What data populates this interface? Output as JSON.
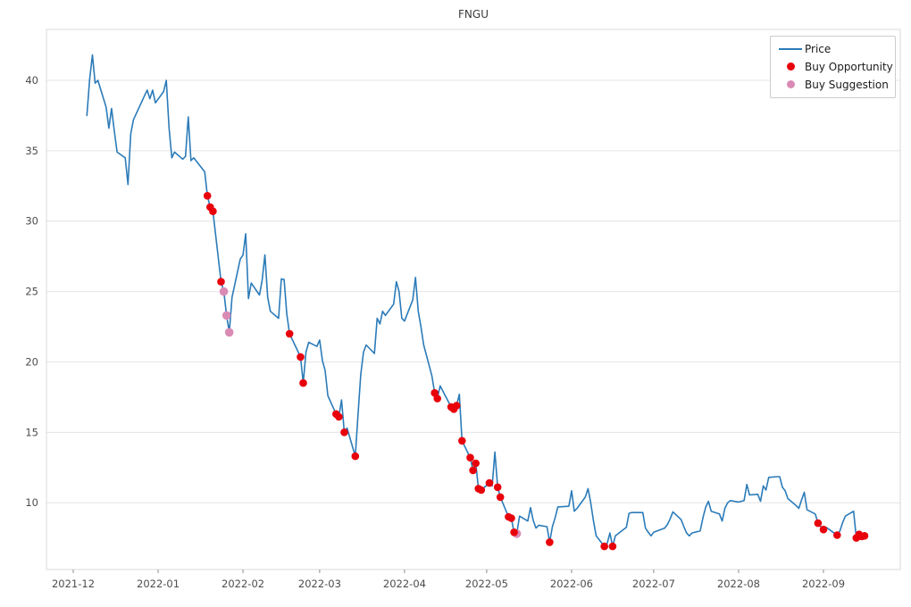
{
  "chart": {
    "title": "FNGU",
    "legend": [
      {
        "label": "Price",
        "marker": "line-sample-icon",
        "color": "#2b7bb9"
      },
      {
        "label": "Buy Opportunity",
        "marker": "red-dot-icon",
        "color": "#e8000b"
      },
      {
        "label": "Buy Suggestion",
        "marker": "pink-dot-icon",
        "color": "#da8bb5"
      }
    ]
  },
  "chart_data": {
    "type": "line",
    "title": "FNGU",
    "xlabel": "",
    "ylabel": "",
    "grid": "horizontal",
    "legend_position": "upper right",
    "x_tick_labels": [
      "2021-12",
      "2022-01",
      "2022-02",
      "2022-03",
      "2022-04",
      "2022-05",
      "2022-06",
      "2022-07",
      "2022-08",
      "2022-09"
    ],
    "x_tick_dates": [
      "2021-12-01",
      "2022-01-01",
      "2022-02-01",
      "2022-03-01",
      "2022-04-01",
      "2022-05-01",
      "2022-06-01",
      "2022-07-01",
      "2022-08-01",
      "2022-09-01"
    ],
    "y_ticks": [
      10,
      15,
      20,
      25,
      30,
      35,
      40
    ],
    "ylim": [
      5.3,
      43.6
    ],
    "xlim": [
      "2021-11-21",
      "2022-09-29"
    ],
    "colors": {
      "price": "#2b7bb9",
      "buy_opportunity": "#e8000b",
      "buy_suggestion": "#da8bb5",
      "grid": "#e4e4e4",
      "spine": "#d8d8d8",
      "tick_label": "#4d4d4d"
    },
    "series": [
      {
        "name": "Price",
        "points": [
          [
            "2021-12-06",
            37.5
          ],
          [
            "2021-12-07",
            40.1
          ],
          [
            "2021-12-08",
            41.8
          ],
          [
            "2021-12-09",
            39.8
          ],
          [
            "2021-12-10",
            40.0
          ],
          [
            "2021-12-13",
            38.1
          ],
          [
            "2021-12-14",
            36.6
          ],
          [
            "2021-12-15",
            38.0
          ],
          [
            "2021-12-16",
            36.4
          ],
          [
            "2021-12-17",
            34.9
          ],
          [
            "2021-12-20",
            34.5
          ],
          [
            "2021-12-21",
            32.6
          ],
          [
            "2021-12-22",
            36.2
          ],
          [
            "2021-12-23",
            37.2
          ],
          [
            "2021-12-27",
            38.9
          ],
          [
            "2021-12-28",
            39.3
          ],
          [
            "2021-12-29",
            38.7
          ],
          [
            "2021-12-30",
            39.3
          ],
          [
            "2021-12-31",
            38.4
          ],
          [
            "2022-01-03",
            39.2
          ],
          [
            "2022-01-04",
            40.0
          ],
          [
            "2022-01-05",
            36.6
          ],
          [
            "2022-01-06",
            34.5
          ],
          [
            "2022-01-07",
            34.9
          ],
          [
            "2022-01-10",
            34.4
          ],
          [
            "2022-01-11",
            34.6
          ],
          [
            "2022-01-12",
            37.4
          ],
          [
            "2022-01-13",
            34.3
          ],
          [
            "2022-01-14",
            34.5
          ],
          [
            "2022-01-18",
            33.5
          ],
          [
            "2022-01-19",
            31.8
          ],
          [
            "2022-01-20",
            31.0
          ],
          [
            "2022-01-21",
            30.7
          ],
          [
            "2022-01-24",
            25.7
          ],
          [
            "2022-01-25",
            25.0
          ],
          [
            "2022-01-26",
            23.3
          ],
          [
            "2022-01-27",
            22.1
          ],
          [
            "2022-01-28",
            24.6
          ],
          [
            "2022-01-31",
            27.3
          ],
          [
            "2022-02-01",
            27.6
          ],
          [
            "2022-02-02",
            29.1
          ],
          [
            "2022-02-03",
            24.5
          ],
          [
            "2022-02-04",
            25.6
          ],
          [
            "2022-02-07",
            24.75
          ],
          [
            "2022-02-08",
            25.8
          ],
          [
            "2022-02-09",
            27.6
          ],
          [
            "2022-02-10",
            24.6
          ],
          [
            "2022-02-11",
            23.6
          ],
          [
            "2022-02-14",
            23.1
          ],
          [
            "2022-02-15",
            25.9
          ],
          [
            "2022-02-16",
            25.85
          ],
          [
            "2022-02-17",
            23.4
          ],
          [
            "2022-02-18",
            22.0
          ],
          [
            "2022-02-22",
            20.35
          ],
          [
            "2022-02-23",
            18.5
          ],
          [
            "2022-02-24",
            20.7
          ],
          [
            "2022-02-25",
            21.4
          ],
          [
            "2022-02-28",
            21.1
          ],
          [
            "2022-03-01",
            21.55
          ],
          [
            "2022-03-02",
            20.1
          ],
          [
            "2022-03-03",
            19.4
          ],
          [
            "2022-03-04",
            17.6
          ],
          [
            "2022-03-07",
            16.3
          ],
          [
            "2022-03-08",
            16.1
          ],
          [
            "2022-03-09",
            17.3
          ],
          [
            "2022-03-10",
            15.0
          ],
          [
            "2022-03-11",
            15.3
          ],
          [
            "2022-03-14",
            13.3
          ],
          [
            "2022-03-15",
            16.2
          ],
          [
            "2022-03-16",
            19.1
          ],
          [
            "2022-03-17",
            20.7
          ],
          [
            "2022-03-18",
            21.2
          ],
          [
            "2022-03-21",
            20.6
          ],
          [
            "2022-03-22",
            23.1
          ],
          [
            "2022-03-23",
            22.7
          ],
          [
            "2022-03-24",
            23.6
          ],
          [
            "2022-03-25",
            23.3
          ],
          [
            "2022-03-28",
            24.1
          ],
          [
            "2022-03-29",
            25.7
          ],
          [
            "2022-03-30",
            25.0
          ],
          [
            "2022-03-31",
            23.1
          ],
          [
            "2022-04-01",
            22.9
          ],
          [
            "2022-04-04",
            24.4
          ],
          [
            "2022-04-05",
            26.0
          ],
          [
            "2022-04-06",
            23.6
          ],
          [
            "2022-04-07",
            22.5
          ],
          [
            "2022-04-08",
            21.2
          ],
          [
            "2022-04-11",
            19.0
          ],
          [
            "2022-04-12",
            17.8
          ],
          [
            "2022-04-13",
            17.4
          ],
          [
            "2022-04-14",
            18.3
          ],
          [
            "2022-04-18",
            16.8
          ],
          [
            "2022-04-19",
            16.65
          ],
          [
            "2022-04-20",
            16.9
          ],
          [
            "2022-04-21",
            17.7
          ],
          [
            "2022-04-22",
            14.4
          ],
          [
            "2022-04-25",
            13.2
          ],
          [
            "2022-04-26",
            12.3
          ],
          [
            "2022-04-27",
            12.8
          ],
          [
            "2022-04-28",
            11.0
          ],
          [
            "2022-04-29",
            10.9
          ],
          [
            "2022-05-02",
            11.4
          ],
          [
            "2022-05-03",
            11.2
          ],
          [
            "2022-05-04",
            13.6
          ],
          [
            "2022-05-05",
            11.1
          ],
          [
            "2022-05-06",
            10.4
          ],
          [
            "2022-05-09",
            9.0
          ],
          [
            "2022-05-10",
            8.9
          ],
          [
            "2022-05-11",
            7.9
          ],
          [
            "2022-05-12",
            7.8
          ],
          [
            "2022-05-13",
            9.05
          ],
          [
            "2022-05-16",
            8.7
          ],
          [
            "2022-05-17",
            9.65
          ],
          [
            "2022-05-18",
            8.75
          ],
          [
            "2022-05-19",
            8.2
          ],
          [
            "2022-05-20",
            8.4
          ],
          [
            "2022-05-23",
            8.3
          ],
          [
            "2022-05-24",
            7.2
          ],
          [
            "2022-05-25",
            8.3
          ],
          [
            "2022-05-26",
            8.95
          ],
          [
            "2022-05-27",
            9.7
          ],
          [
            "2022-05-31",
            9.75
          ],
          [
            "2022-06-01",
            10.85
          ],
          [
            "2022-06-02",
            9.4
          ],
          [
            "2022-06-03",
            9.6
          ],
          [
            "2022-06-06",
            10.4
          ],
          [
            "2022-06-07",
            11.0
          ],
          [
            "2022-06-08",
            10.0
          ],
          [
            "2022-06-09",
            8.7
          ],
          [
            "2022-06-10",
            7.65
          ],
          [
            "2022-06-13",
            6.9
          ],
          [
            "2022-06-14",
            7.1
          ],
          [
            "2022-06-15",
            7.85
          ],
          [
            "2022-06-16",
            6.9
          ],
          [
            "2022-06-17",
            7.65
          ],
          [
            "2022-06-21",
            8.25
          ],
          [
            "2022-06-22",
            9.25
          ],
          [
            "2022-06-23",
            9.3
          ],
          [
            "2022-06-24",
            9.3
          ],
          [
            "2022-06-27",
            9.3
          ],
          [
            "2022-06-28",
            8.2
          ],
          [
            "2022-06-29",
            7.9
          ],
          [
            "2022-06-30",
            7.65
          ],
          [
            "2022-07-01",
            7.9
          ],
          [
            "2022-07-05",
            8.2
          ],
          [
            "2022-07-06",
            8.45
          ],
          [
            "2022-07-07",
            8.85
          ],
          [
            "2022-07-08",
            9.35
          ],
          [
            "2022-07-11",
            8.8
          ],
          [
            "2022-07-12",
            8.3
          ],
          [
            "2022-07-13",
            7.85
          ],
          [
            "2022-07-14",
            7.65
          ],
          [
            "2022-07-15",
            7.85
          ],
          [
            "2022-07-18",
            8.0
          ],
          [
            "2022-07-19",
            8.95
          ],
          [
            "2022-07-20",
            9.7
          ],
          [
            "2022-07-21",
            10.1
          ],
          [
            "2022-07-22",
            9.4
          ],
          [
            "2022-07-25",
            9.2
          ],
          [
            "2022-07-26",
            8.7
          ],
          [
            "2022-07-27",
            9.6
          ],
          [
            "2022-07-28",
            10.0
          ],
          [
            "2022-07-29",
            10.15
          ],
          [
            "2022-08-01",
            10.05
          ],
          [
            "2022-08-02",
            10.1
          ],
          [
            "2022-08-03",
            10.15
          ],
          [
            "2022-08-04",
            11.3
          ],
          [
            "2022-08-05",
            10.55
          ],
          [
            "2022-08-08",
            10.6
          ],
          [
            "2022-08-09",
            10.1
          ],
          [
            "2022-08-10",
            11.2
          ],
          [
            "2022-08-11",
            10.9
          ],
          [
            "2022-08-12",
            11.8
          ],
          [
            "2022-08-15",
            11.85
          ],
          [
            "2022-08-16",
            11.85
          ],
          [
            "2022-08-17",
            11.1
          ],
          [
            "2022-08-18",
            10.85
          ],
          [
            "2022-08-19",
            10.3
          ],
          [
            "2022-08-22",
            9.8
          ],
          [
            "2022-08-23",
            9.6
          ],
          [
            "2022-08-24",
            10.2
          ],
          [
            "2022-08-25",
            10.75
          ],
          [
            "2022-08-26",
            9.5
          ],
          [
            "2022-08-29",
            9.2
          ],
          [
            "2022-08-30",
            8.55
          ],
          [
            "2022-08-31",
            8.3
          ],
          [
            "2022-09-01",
            8.1
          ],
          [
            "2022-09-02",
            8.25
          ],
          [
            "2022-09-06",
            7.7
          ],
          [
            "2022-09-07",
            8.0
          ],
          [
            "2022-09-08",
            8.6
          ],
          [
            "2022-09-09",
            9.05
          ],
          [
            "2022-09-12",
            9.4
          ],
          [
            "2022-09-13",
            7.5
          ],
          [
            "2022-09-14",
            7.75
          ],
          [
            "2022-09-15",
            7.6
          ],
          [
            "2022-09-16",
            7.65
          ]
        ]
      }
    ],
    "buy_opportunities": [
      [
        "2022-01-19",
        31.8
      ],
      [
        "2022-01-20",
        31.0
      ],
      [
        "2022-01-21",
        30.7
      ],
      [
        "2022-01-24",
        25.7
      ],
      [
        "2022-02-18",
        22.0
      ],
      [
        "2022-02-22",
        20.35
      ],
      [
        "2022-02-23",
        18.5
      ],
      [
        "2022-03-07",
        16.3
      ],
      [
        "2022-03-08",
        16.1
      ],
      [
        "2022-03-10",
        15.0
      ],
      [
        "2022-03-14",
        13.3
      ],
      [
        "2022-04-12",
        17.8
      ],
      [
        "2022-04-13",
        17.4
      ],
      [
        "2022-04-18",
        16.8
      ],
      [
        "2022-04-19",
        16.65
      ],
      [
        "2022-04-20",
        16.9
      ],
      [
        "2022-04-22",
        14.4
      ],
      [
        "2022-04-25",
        13.2
      ],
      [
        "2022-04-26",
        12.3
      ],
      [
        "2022-04-27",
        12.8
      ],
      [
        "2022-04-28",
        11.0
      ],
      [
        "2022-04-29",
        10.9
      ],
      [
        "2022-05-02",
        11.4
      ],
      [
        "2022-05-05",
        11.1
      ],
      [
        "2022-05-06",
        10.4
      ],
      [
        "2022-05-09",
        9.0
      ],
      [
        "2022-05-10",
        8.9
      ],
      [
        "2022-05-11",
        7.9
      ],
      [
        "2022-05-24",
        7.2
      ],
      [
        "2022-06-13",
        6.9
      ],
      [
        "2022-06-16",
        6.9
      ],
      [
        "2022-08-30",
        8.55
      ],
      [
        "2022-09-01",
        8.1
      ],
      [
        "2022-09-06",
        7.7
      ],
      [
        "2022-09-13",
        7.5
      ],
      [
        "2022-09-14",
        7.75
      ],
      [
        "2022-09-15",
        7.6
      ],
      [
        "2022-09-16",
        7.65
      ]
    ],
    "buy_suggestions": [
      [
        "2022-01-25",
        25.0
      ],
      [
        "2022-01-26",
        23.3
      ],
      [
        "2022-01-27",
        22.1
      ],
      [
        "2022-05-12",
        7.8
      ]
    ]
  }
}
